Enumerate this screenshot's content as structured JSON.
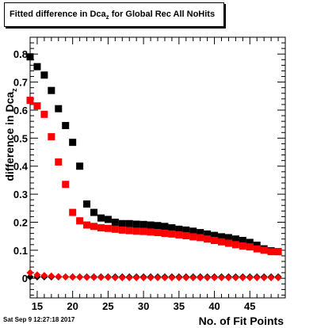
{
  "title": {
    "main": "Fitted difference in Dca",
    "sub": "z",
    "rest": " for Global Rec All NoHits"
  },
  "timestamp": "Sat Sep  9 12:27:18 2017",
  "chart_data": {
    "type": "scatter",
    "xlabel": "No. of Fit Points",
    "ylabel_main": "difference in Dca",
    "ylabel_sub": "z",
    "xlim": [
      14,
      50
    ],
    "ylim": [
      -0.07,
      0.86
    ],
    "x_ticks": [
      15,
      20,
      25,
      30,
      35,
      40,
      45
    ],
    "y_ticks": [
      0,
      0.1,
      0.2,
      0.3,
      0.4,
      0.5,
      0.6,
      0.7,
      0.8
    ],
    "series": [
      {
        "color": "#000000",
        "marker": "square",
        "x": [
          14,
          15,
          16,
          17,
          18,
          19,
          20,
          21,
          22,
          23,
          24,
          25,
          26,
          27,
          28,
          29,
          30,
          31,
          32,
          33,
          34,
          35,
          36,
          37,
          38,
          39,
          40,
          41,
          42,
          43,
          44,
          45,
          46,
          47,
          48,
          49
        ],
        "y": [
          0.79,
          0.755,
          0.725,
          0.67,
          0.605,
          0.545,
          0.485,
          0.4,
          0.265,
          0.235,
          0.215,
          0.21,
          0.2,
          0.195,
          0.195,
          0.193,
          0.192,
          0.19,
          0.188,
          0.185,
          0.18,
          0.175,
          0.172,
          0.168,
          0.163,
          0.158,
          0.153,
          0.148,
          0.145,
          0.14,
          0.135,
          0.128,
          0.118,
          0.105,
          0.098,
          0.095
        ]
      },
      {
        "color": "#ff0000",
        "marker": "square",
        "x": [
          14,
          15,
          16,
          17,
          18,
          19,
          20,
          21,
          22,
          23,
          24,
          25,
          26,
          27,
          28,
          29,
          30,
          31,
          32,
          33,
          34,
          35,
          36,
          37,
          38,
          39,
          40,
          41,
          42,
          43,
          44,
          45,
          46,
          47,
          48,
          49
        ],
        "y": [
          0.635,
          0.615,
          0.585,
          0.505,
          0.415,
          0.335,
          0.235,
          0.205,
          0.19,
          0.185,
          0.18,
          0.178,
          0.175,
          0.172,
          0.17,
          0.168,
          0.167,
          0.165,
          0.163,
          0.16,
          0.158,
          0.155,
          0.152,
          0.148,
          0.145,
          0.14,
          0.135,
          0.13,
          0.125,
          0.12,
          0.115,
          0.112,
          0.105,
          0.1,
          0.095,
          0.095
        ]
      },
      {
        "color": "#000000",
        "marker": "diamond",
        "x": [
          14,
          15,
          16,
          17,
          18,
          19,
          20,
          21,
          22,
          23,
          24,
          25,
          26,
          27,
          28,
          29,
          30,
          31,
          32,
          33,
          34,
          35,
          36,
          37,
          38,
          39,
          40,
          41,
          42,
          43,
          44,
          45,
          46,
          47,
          48,
          49
        ],
        "y": [
          0.005,
          0.005,
          0.005,
          0.005,
          0.005,
          0.005,
          0.005,
          0.005,
          0.005,
          0.005,
          0.005,
          0.005,
          0.005,
          0.005,
          0.005,
          0.005,
          0.005,
          0.005,
          0.005,
          0.005,
          0.005,
          0.005,
          0.005,
          0.005,
          0.005,
          0.005,
          0.005,
          0.005,
          0.005,
          0.005,
          0.005,
          0.005,
          0.005,
          0.005,
          0.005,
          0.005
        ]
      },
      {
        "color": "#ff0000",
        "marker": "diamond",
        "x": [
          14,
          15,
          16,
          17,
          18,
          19,
          20,
          21,
          22,
          23,
          24,
          25,
          26,
          27,
          28,
          29,
          30,
          31,
          32,
          33,
          34,
          35,
          36,
          37,
          38,
          39,
          40,
          41,
          42,
          43,
          44,
          45,
          46,
          47,
          48,
          49
        ],
        "y": [
          0.02,
          0.012,
          0.01,
          0.008,
          0.006,
          0.005,
          0.004,
          0.004,
          0.003,
          0.003,
          0.003,
          0.003,
          0.002,
          0.002,
          0.002,
          0.002,
          0.002,
          0.002,
          0.002,
          0.002,
          0.002,
          0.002,
          0.002,
          0.002,
          0.002,
          0.002,
          0.002,
          0.002,
          0.002,
          0.002,
          0.002,
          0.002,
          0.002,
          0.002,
          0.002,
          0.002
        ]
      }
    ]
  }
}
